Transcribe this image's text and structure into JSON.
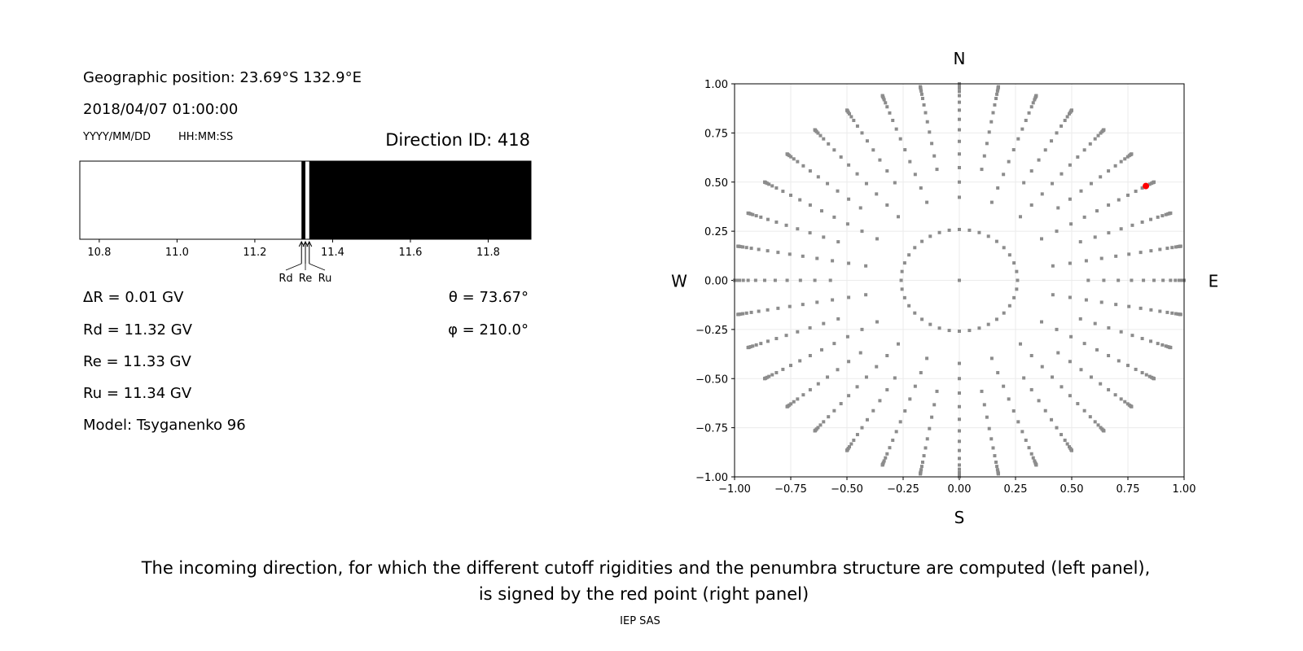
{
  "left_panel": {
    "position": "Geographic position: 23.69°S 132.9°E",
    "datetime": "2018/04/07 01:00:00",
    "date_format": "YYYY/MM/DD",
    "time_format": "HH:MM:SS",
    "direction_id": "Direction ID: 418",
    "delta_r": "ΔR = 0.01 GV",
    "rd": "Rd = 11.32 GV",
    "re": "Re = 11.33 GV",
    "ru": "Ru = 11.34 GV",
    "model": "Model: Tsyganenko 96",
    "theta": "θ = 73.67°",
    "phi": "φ = 210.0°"
  },
  "chart_data": [
    {
      "type": "penumbra-bar",
      "xlim": [
        10.75,
        11.91
      ],
      "xticks": [
        "10.8",
        "11.0",
        "11.2",
        "11.4",
        "11.6",
        "11.8"
      ],
      "allowed_color": "#ffffff",
      "forbidden_color": "#000000",
      "forbidden_intervals": [
        [
          11.32,
          11.33
        ],
        [
          11.34,
          11.91
        ]
      ],
      "markers": [
        {
          "label": "Rd",
          "value": 11.32
        },
        {
          "label": "Re",
          "value": 11.33
        },
        {
          "label": "Ru",
          "value": 11.34
        }
      ]
    },
    {
      "type": "scatter",
      "xlim": [
        -1,
        1
      ],
      "ylim": [
        -1,
        1
      ],
      "xticks": [
        "−1.00",
        "−0.75",
        "−0.50",
        "−0.25",
        "0.00",
        "0.25",
        "0.50",
        "0.75",
        "1.00"
      ],
      "yticks": [
        "−1.00",
        "−0.75",
        "−0.50",
        "−0.25",
        "0.00",
        "0.25",
        "0.50",
        "0.75",
        "1.00"
      ],
      "grid": true,
      "compass": {
        "N": "N",
        "S": "S",
        "E": "E",
        "W": "W"
      },
      "grid_points": {
        "azimuth_step_deg": 10,
        "inner_ring_zenith_deg": 15,
        "zenith_deg": [
          25,
          30,
          35,
          40,
          45,
          50,
          55,
          60,
          65,
          70,
          74,
          78,
          81,
          84,
          86,
          88,
          90
        ],
        "color": "#8c8c8c"
      },
      "selected_point": {
        "x": 0.83,
        "y": 0.48,
        "color": "#ff0000"
      }
    }
  ],
  "caption": {
    "line1": "The incoming direction, for which the different cutoff rigidities and the penumbra structure are computed (left panel),",
    "line2": "is signed by the red point (right panel)"
  },
  "footer": "IEP SAS"
}
